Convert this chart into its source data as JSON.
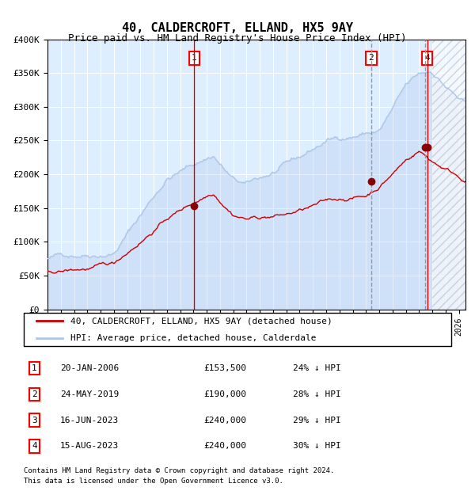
{
  "title": "40, CALDERCROFT, ELLAND, HX5 9AY",
  "subtitle": "Price paid vs. HM Land Registry's House Price Index (HPI)",
  "legend_line1": "40, CALDERCROFT, ELLAND, HX5 9AY (detached house)",
  "legend_line2": "HPI: Average price, detached house, Calderdale",
  "footer1": "Contains HM Land Registry data © Crown copyright and database right 2024.",
  "footer2": "This data is licensed under the Open Government Licence v3.0.",
  "hpi_color": "#aec6e8",
  "price_color": "#cc0000",
  "dot_color": "#8b0000",
  "vline_color_solid": "#cc0000",
  "vline_color_dashed": "#999999",
  "background_color": "#ddeeff",
  "ylim": [
    0,
    400000
  ],
  "yticks": [
    0,
    50000,
    100000,
    150000,
    200000,
    250000,
    300000,
    350000,
    400000
  ],
  "ytick_labels": [
    "£0",
    "£50K",
    "£100K",
    "£150K",
    "£200K",
    "£250K",
    "£300K",
    "£350K",
    "£400K"
  ],
  "sale_events": [
    {
      "label": "1",
      "date_str": "20-JAN-2006",
      "price": 153500,
      "pct": "24% ↓ HPI",
      "year": 2006.05,
      "solid_line": true
    },
    {
      "label": "2",
      "date_str": "24-MAY-2019",
      "price": 190000,
      "pct": "28% ↓ HPI",
      "year": 2019.4,
      "solid_line": false
    },
    {
      "label": "3",
      "date_str": "16-JUN-2023",
      "price": 240000,
      "pct": "29% ↓ HPI",
      "year": 2023.46,
      "solid_line": false
    },
    {
      "label": "4",
      "date_str": "15-AUG-2023",
      "price": 240000,
      "pct": "30% ↓ HPI",
      "year": 2023.62,
      "solid_line": true
    }
  ],
  "xmin": 1995.0,
  "xmax": 2026.5,
  "hatch_start": 2024.0
}
